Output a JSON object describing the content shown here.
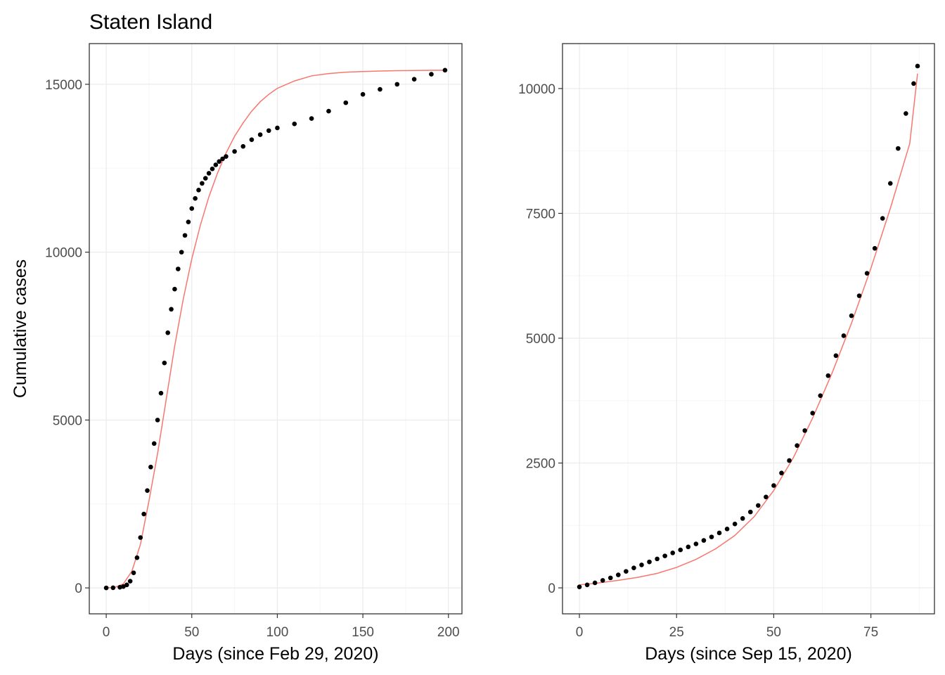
{
  "figure": {
    "title": "Staten Island"
  },
  "colors": {
    "points": "#000000",
    "fit_line": "#f8766d",
    "grid_major": "#ebebeb",
    "grid_minor": "#f5f5f5",
    "panel_border": "#333333",
    "tick_text": "#4d4d4d"
  },
  "chart_data": [
    {
      "type": "scatter",
      "title": "Staten Island",
      "xlabel": "Days (since Feb 29, 2020)",
      "ylabel": "Cumulative cases",
      "xlim": [
        -9.9,
        207.9
      ],
      "ylim": [
        -772,
        16212
      ],
      "xticks": [
        0,
        50,
        100,
        150,
        200
      ],
      "yticks": [
        0,
        5000,
        10000,
        15000
      ],
      "xtick_labels": [
        "0",
        "50",
        "100",
        "150",
        "200"
      ],
      "ytick_labels": [
        "0",
        "5000",
        "10000",
        "15000"
      ],
      "grid": true,
      "legend": "none",
      "series": [
        {
          "kind": "points",
          "x": [
            0,
            4,
            8,
            10,
            12,
            14,
            16,
            18,
            20,
            22,
            24,
            26,
            28,
            30,
            32,
            34,
            36,
            38,
            40,
            42,
            44,
            46,
            48,
            50,
            52,
            54,
            56,
            58,
            60,
            62,
            64,
            66,
            68,
            70,
            75,
            80,
            85,
            90,
            95,
            100,
            110,
            120,
            130,
            140,
            150,
            160,
            170,
            180,
            190,
            198
          ],
          "y": [
            0,
            5,
            20,
            40,
            90,
            200,
            450,
            900,
            1500,
            2200,
            2900,
            3600,
            4300,
            5000,
            5800,
            6700,
            7600,
            8300,
            8900,
            9500,
            10000,
            10500,
            10900,
            11300,
            11600,
            11850,
            12050,
            12200,
            12350,
            12480,
            12600,
            12700,
            12780,
            12850,
            13000,
            13150,
            13350,
            13500,
            13620,
            13700,
            13820,
            13980,
            14200,
            14450,
            14700,
            14850,
            15000,
            15150,
            15300,
            15420
          ]
        },
        {
          "kind": "line",
          "x": [
            0,
            5,
            10,
            15,
            20,
            25,
            30,
            35,
            40,
            45,
            50,
            55,
            60,
            65,
            70,
            75,
            80,
            85,
            90,
            95,
            100,
            110,
            120,
            130,
            140,
            150,
            160,
            170,
            180,
            190,
            198
          ],
          "y": [
            0,
            15,
            120,
            500,
            1300,
            2600,
            4000,
            5600,
            7200,
            8600,
            9800,
            10800,
            11650,
            12350,
            12950,
            13450,
            13850,
            14200,
            14480,
            14700,
            14880,
            15100,
            15250,
            15320,
            15360,
            15380,
            15395,
            15405,
            15410,
            15415,
            15420
          ]
        }
      ]
    },
    {
      "type": "scatter",
      "title": "",
      "xlabel": "Days (since Sep 15, 2020)",
      "ylabel": "",
      "xlim": [
        -4.35,
        91.35
      ],
      "ylim": [
        -520,
        10900
      ],
      "xticks": [
        0,
        25,
        50,
        75
      ],
      "yticks": [
        0,
        2500,
        5000,
        7500,
        10000
      ],
      "xtick_labels": [
        "0",
        "25",
        "50",
        "75"
      ],
      "ytick_labels": [
        "0",
        "2500",
        "5000",
        "7500",
        "10000"
      ],
      "grid": true,
      "legend": "none",
      "series": [
        {
          "kind": "points",
          "x": [
            0,
            2,
            4,
            6,
            8,
            10,
            12,
            14,
            16,
            18,
            20,
            22,
            24,
            26,
            28,
            30,
            32,
            34,
            36,
            38,
            40,
            42,
            44,
            46,
            48,
            50,
            52,
            54,
            56,
            58,
            60,
            62,
            64,
            66,
            68,
            70,
            72,
            74,
            76,
            78,
            80,
            82,
            84,
            86,
            87
          ],
          "y": [
            20,
            60,
            100,
            150,
            200,
            260,
            330,
            400,
            460,
            520,
            580,
            640,
            700,
            760,
            820,
            880,
            950,
            1020,
            1100,
            1180,
            1280,
            1390,
            1520,
            1650,
            1820,
            2050,
            2300,
            2550,
            2850,
            3150,
            3500,
            3850,
            4250,
            4650,
            5050,
            5450,
            5850,
            6300,
            6800,
            7400,
            8100,
            8800,
            9500,
            10100,
            10450
          ]
        },
        {
          "kind": "line",
          "x": [
            0,
            5,
            10,
            15,
            20,
            25,
            30,
            35,
            40,
            45,
            50,
            55,
            60,
            65,
            70,
            75,
            80,
            85,
            87
          ],
          "y": [
            60,
            100,
            150,
            210,
            290,
            410,
            570,
            780,
            1050,
            1430,
            1950,
            2600,
            3400,
            4300,
            5300,
            6400,
            7600,
            8900,
            10300
          ]
        }
      ]
    }
  ]
}
